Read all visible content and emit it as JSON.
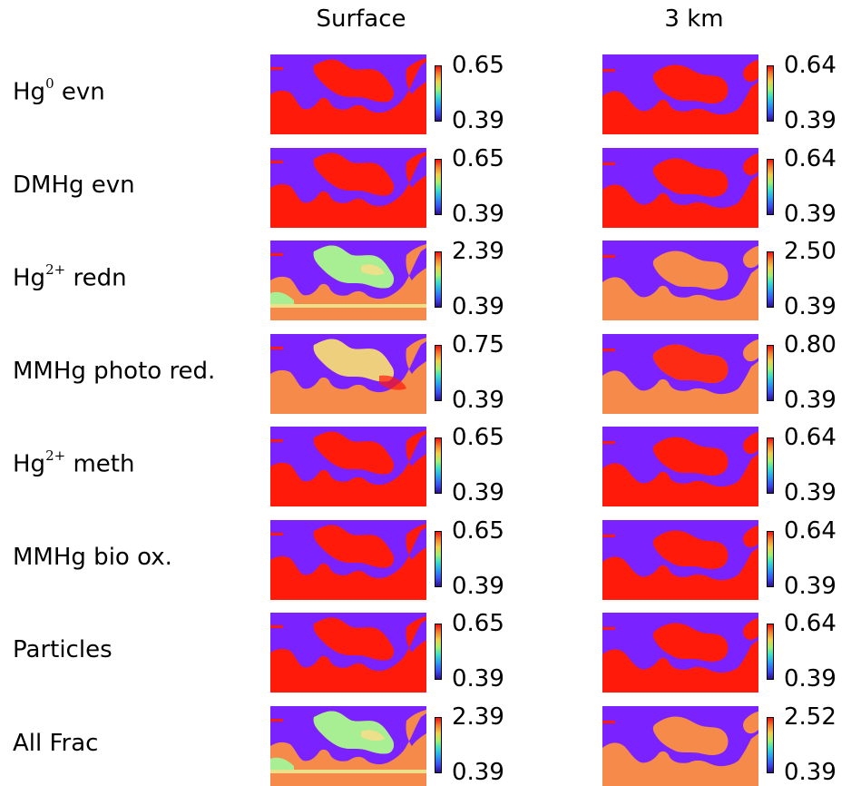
{
  "columns": [
    "Surface",
    "3 km"
  ],
  "rows": [
    {
      "label": "Hg",
      "sup": "0",
      "suffix": " evn",
      "panels": [
        {
          "style": "red",
          "max": "0.65",
          "min": "0.39"
        },
        {
          "style": "deep",
          "max": "0.64",
          "min": "0.39"
        }
      ]
    },
    {
      "label": "DMHg evn",
      "sup": "",
      "suffix": "",
      "panels": [
        {
          "style": "red",
          "max": "0.65",
          "min": "0.39"
        },
        {
          "style": "deep",
          "max": "0.64",
          "min": "0.39"
        }
      ]
    },
    {
      "label": "Hg",
      "sup": "2+",
      "suffix": " redn",
      "panels": [
        {
          "style": "green",
          "max": "2.39",
          "min": "0.39"
        },
        {
          "style": "orange",
          "max": "2.50",
          "min": "0.39"
        }
      ]
    },
    {
      "label": "MMHg photo red.",
      "sup": "",
      "suffix": "",
      "panels": [
        {
          "style": "warm",
          "max": "0.75",
          "min": "0.39"
        },
        {
          "style": "warmdeep",
          "max": "0.80",
          "min": "0.39"
        }
      ]
    },
    {
      "label": "Hg",
      "sup": "2+",
      "suffix": " meth",
      "panels": [
        {
          "style": "red",
          "max": "0.65",
          "min": "0.39"
        },
        {
          "style": "deep",
          "max": "0.64",
          "min": "0.39"
        }
      ]
    },
    {
      "label": "MMHg bio ox.",
      "sup": "",
      "suffix": "",
      "panels": [
        {
          "style": "red",
          "max": "0.65",
          "min": "0.39"
        },
        {
          "style": "deep",
          "max": "0.64",
          "min": "0.39"
        }
      ]
    },
    {
      "label": "Particles",
      "sup": "",
      "suffix": "",
      "panels": [
        {
          "style": "red",
          "max": "0.65",
          "min": "0.39"
        },
        {
          "style": "deep",
          "max": "0.64",
          "min": "0.39"
        }
      ]
    },
    {
      "label": "All Frac",
      "sup": "",
      "suffix": "",
      "panels": [
        {
          "style": "green",
          "max": "2.39",
          "min": "0.39"
        },
        {
          "style": "orange",
          "max": "2.52",
          "min": "0.39"
        }
      ]
    }
  ],
  "colors": {
    "land": "#7a22ff",
    "ocean_red": "#ff1a0a",
    "ocean_orange": "#f58a4a",
    "ocean_green": "#a8ee92",
    "ocean_yellow": "#ece08a"
  }
}
